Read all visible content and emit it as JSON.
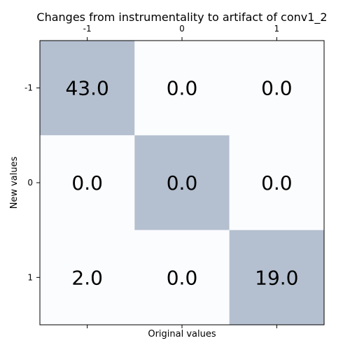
{
  "chart_data": {
    "type": "heatmap",
    "title": "Changes from instrumentality to artifact of conv1_2",
    "xlabel": "Original values",
    "ylabel": "New values",
    "x_categories": [
      "-1",
      "0",
      "1"
    ],
    "y_categories": [
      "-1",
      "0",
      "1"
    ],
    "cells": [
      [
        43.0,
        0.0,
        0.0
      ],
      [
        0.0,
        0.0,
        0.0
      ],
      [
        2.0,
        0.0,
        19.0
      ]
    ],
    "cell_labels": [
      [
        "43.0",
        "0.0",
        "0.0"
      ],
      [
        "0.0",
        "0.0",
        "0.0"
      ],
      [
        "2.0",
        "0.0",
        "19.0"
      ]
    ],
    "highlight": "diagonal",
    "colors": {
      "diagonal": "#b4bfcf",
      "off_diagonal": "#fbfcfe",
      "frame": "#000000"
    },
    "x_ticks_position": "top-and-bottom",
    "grid": false,
    "legend": "none"
  }
}
